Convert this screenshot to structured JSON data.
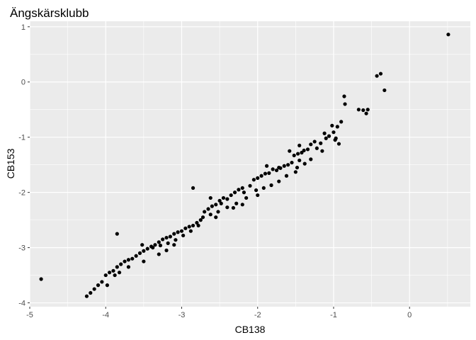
{
  "chart_data": {
    "type": "scatter",
    "title": "Ängskärsklubb",
    "xlabel": "CB138",
    "ylabel": "CB153",
    "xlim": [
      -5.0,
      0.8
    ],
    "ylim": [
      -4.07,
      1.1
    ],
    "xticks": [
      -5,
      -4,
      -3,
      -2,
      -1,
      0
    ],
    "yticks": [
      1,
      0,
      -1,
      -2,
      -3,
      -4
    ],
    "xtick_labels": [
      "-5",
      "-4",
      "-3",
      "-2",
      "-1",
      "0"
    ],
    "ytick_labels": [
      "1",
      "0",
      "-1",
      "-2",
      "-3",
      "-4"
    ],
    "grid": true,
    "colors": {
      "panel": "#ebebeb",
      "grid_major": "#ffffff",
      "point": "#000000"
    },
    "series": [
      {
        "name": "points",
        "points": [
          [
            0.51,
            0.86
          ],
          [
            -0.38,
            0.15
          ],
          [
            -0.43,
            0.11
          ],
          [
            -0.33,
            -0.15
          ],
          [
            -0.55,
            -0.5
          ],
          [
            -0.61,
            -0.51
          ],
          [
            -0.67,
            -0.5
          ],
          [
            -0.57,
            -0.57
          ],
          [
            -0.86,
            -0.26
          ],
          [
            -0.85,
            -0.4
          ],
          [
            -0.9,
            -0.72
          ],
          [
            -0.95,
            -0.81
          ],
          [
            -1.02,
            -0.79
          ],
          [
            -1.0,
            -0.91
          ],
          [
            -1.06,
            -0.98
          ],
          [
            -1.12,
            -0.93
          ],
          [
            -1.1,
            -1.02
          ],
          [
            -0.93,
            -1.12
          ],
          [
            -0.97,
            -1.02
          ],
          [
            -1.17,
            -1.11
          ],
          [
            -1.22,
            -1.2
          ],
          [
            -1.25,
            -1.08
          ],
          [
            -1.3,
            -1.13
          ],
          [
            -1.34,
            -1.22
          ],
          [
            -1.39,
            -1.24
          ],
          [
            -1.42,
            -1.28
          ],
          [
            -1.47,
            -1.3
          ],
          [
            -1.52,
            -1.33
          ],
          [
            -1.45,
            -1.42
          ],
          [
            -1.55,
            -1.46
          ],
          [
            -1.6,
            -1.5
          ],
          [
            -1.65,
            -1.52
          ],
          [
            -1.7,
            -1.56
          ],
          [
            -1.75,
            -1.6
          ],
          [
            -1.8,
            -1.58
          ],
          [
            -1.85,
            -1.65
          ],
          [
            -1.9,
            -1.66
          ],
          [
            -1.95,
            -1.7
          ],
          [
            -2.0,
            -1.74
          ],
          [
            -2.05,
            -1.77
          ],
          [
            -1.38,
            -1.48
          ],
          [
            -1.5,
            -1.63
          ],
          [
            -1.62,
            -1.7
          ],
          [
            -1.72,
            -1.8
          ],
          [
            -1.82,
            -1.87
          ],
          [
            -1.92,
            -1.92
          ],
          [
            -2.02,
            -1.96
          ],
          [
            -1.72,
            -1.55
          ],
          [
            -1.88,
            -1.52
          ],
          [
            -2.2,
            -1.92
          ],
          [
            -2.25,
            -1.95
          ],
          [
            -2.3,
            -2.0
          ],
          [
            -2.35,
            -2.05
          ],
          [
            -2.4,
            -2.12
          ],
          [
            -2.45,
            -2.1
          ],
          [
            -2.5,
            -2.15
          ],
          [
            -2.55,
            -2.22
          ],
          [
            -2.6,
            -2.25
          ],
          [
            -2.65,
            -2.3
          ],
          [
            -2.7,
            -2.35
          ],
          [
            -2.15,
            -2.1
          ],
          [
            -2.28,
            -2.2
          ],
          [
            -2.4,
            -2.27
          ],
          [
            -2.52,
            -2.35
          ],
          [
            -2.62,
            -2.4
          ],
          [
            -2.72,
            -2.45
          ],
          [
            -2.85,
            -1.92
          ],
          [
            -2.2,
            -2.22
          ],
          [
            -2.32,
            -2.28
          ],
          [
            -2.48,
            -2.2
          ],
          [
            -2.75,
            -2.5
          ],
          [
            -2.8,
            -2.55
          ],
          [
            -2.85,
            -2.6
          ],
          [
            -2.9,
            -2.62
          ],
          [
            -2.95,
            -2.65
          ],
          [
            -3.0,
            -2.7
          ],
          [
            -3.05,
            -2.72
          ],
          [
            -3.1,
            -2.75
          ],
          [
            -3.15,
            -2.8
          ],
          [
            -3.2,
            -2.82
          ],
          [
            -2.78,
            -2.6
          ],
          [
            -2.88,
            -2.7
          ],
          [
            -2.98,
            -2.78
          ],
          [
            -3.08,
            -2.86
          ],
          [
            -3.18,
            -2.92
          ],
          [
            -3.28,
            -2.96
          ],
          [
            -3.38,
            -3.0
          ],
          [
            -3.45,
            -3.02
          ],
          [
            -3.5,
            -3.06
          ],
          [
            -3.55,
            -3.1
          ],
          [
            -3.25,
            -2.85
          ],
          [
            -3.3,
            -2.9
          ],
          [
            -3.35,
            -2.95
          ],
          [
            -3.4,
            -2.98
          ],
          [
            -3.1,
            -2.95
          ],
          [
            -3.2,
            -3.05
          ],
          [
            -3.3,
            -3.12
          ],
          [
            -3.6,
            -3.15
          ],
          [
            -3.65,
            -3.2
          ],
          [
            -3.7,
            -3.22
          ],
          [
            -3.75,
            -3.25
          ],
          [
            -3.8,
            -3.3
          ],
          [
            -3.85,
            -3.35
          ],
          [
            -3.9,
            -3.42
          ],
          [
            -3.95,
            -3.45
          ],
          [
            -3.5,
            -3.25
          ],
          [
            -3.7,
            -3.35
          ],
          [
            -3.82,
            -3.45
          ],
          [
            -3.88,
            -3.5
          ],
          [
            -4.0,
            -3.5
          ],
          [
            -4.05,
            -3.62
          ],
          [
            -4.1,
            -3.68
          ],
          [
            -4.15,
            -3.75
          ],
          [
            -4.2,
            -3.82
          ],
          [
            -4.25,
            -3.88
          ],
          [
            -3.98,
            -3.68
          ],
          [
            -3.85,
            -2.75
          ],
          [
            -4.85,
            -3.57
          ],
          [
            -3.52,
            -2.95
          ],
          [
            -2.62,
            -2.1
          ],
          [
            -2.0,
            -2.05
          ],
          [
            -2.1,
            -1.88
          ],
          [
            -2.18,
            -2.0
          ],
          [
            -1.58,
            -1.25
          ],
          [
            -1.45,
            -1.15
          ],
          [
            -0.98,
            -1.05
          ],
          [
            -1.15,
            -1.25
          ],
          [
            -1.3,
            -1.4
          ],
          [
            -1.48,
            -1.55
          ],
          [
            -2.55,
            -2.45
          ]
        ]
      }
    ]
  }
}
